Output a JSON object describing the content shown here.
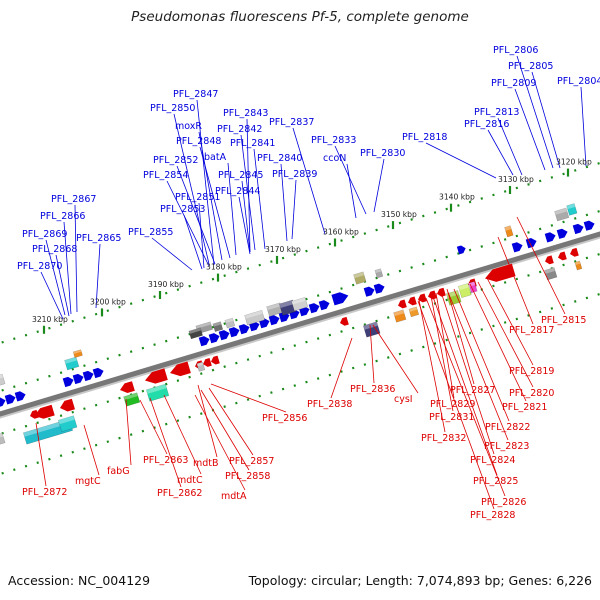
{
  "title": "Pseudomonas fluorescens Pf-5, complete genome",
  "footer": {
    "accession": "Accession: NC_004129",
    "stats": "Topology: circular; Length: 7,074,893 bp; Genes: 6,226"
  },
  "colors": {
    "forward_strand": "#0000dd",
    "reverse_strand": "#dd0000",
    "ticks": "#1a8a1a",
    "backbone": "#777777"
  },
  "kbp_labels": [
    "3120 kbp",
    "3130 kbp",
    "3140 kbp",
    "3150 kbp",
    "3160 kbp",
    "3170 kbp",
    "3180 kbp",
    "3190 kbp",
    "3200 kbp",
    "3210 kbp"
  ],
  "forward_labels": [
    "PFL_2806",
    "PFL_2805",
    "PFL_2804",
    "PFL_2809",
    "PFL_2813",
    "PFL_2816",
    "PFL_2818",
    "PFL_2830",
    "ccoN",
    "PFL_2833",
    "PFL_2837",
    "PFL_2847",
    "PFL_2850",
    "moxR",
    "PFL_2843",
    "PFL_2842",
    "PFL_2841",
    "PFL_2848",
    "batA",
    "PFL_2840",
    "PFL_2852",
    "PFL_2839",
    "PFL_2854",
    "PFL_2845",
    "PFL_2844",
    "PFL_2851",
    "PFL_2853",
    "PFL_2867",
    "PFL_2866",
    "PFL_2869",
    "PFL_2868",
    "PFL_2865",
    "PFL_2870",
    "PFL_2855"
  ],
  "reverse_labels": [
    "PFL_2815",
    "PFL_2817",
    "PFL_2819",
    "PFL_2820",
    "PFL_2821",
    "PFL_2822",
    "PFL_2823",
    "PFL_2824",
    "PFL_2825",
    "PFL_2826",
    "PFL_2828",
    "PFL_2827",
    "PFL_2829",
    "PFL_2831",
    "PFL_2832",
    "cysI",
    "PFL_2836",
    "PFL_2838",
    "PFL_2856",
    "PFL_2857",
    "PFL_2858",
    "mdtB",
    "mdtA",
    "mdtC",
    "PFL_2863",
    "PFL_2862",
    "fabG",
    "mgtC",
    "PFL_2872"
  ]
}
